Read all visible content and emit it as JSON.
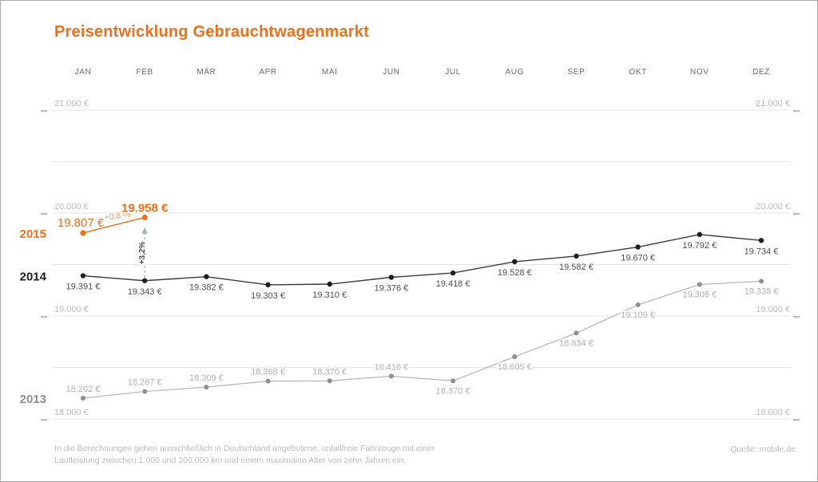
{
  "meta": {
    "title": "Preisentwicklung Gebrauchtwagenmarkt",
    "source": "Quelle: mobile.de",
    "footnote_line1": "In die Berechnungen gehen ausschließlich in Deutschland angebotene, unfallfreie Fahrzeuge mit einer",
    "footnote_line2": "Laufleistung zwischen 1.000 und 200.000 km und einem maximalen Alter von zehn Jahren ein."
  },
  "colors": {
    "accent": "#ee6f1e",
    "accent_light": "#f39b60",
    "dark_line": "#3b3b3b",
    "dark_point": "#1f1f1f",
    "dark_value": "#4f4f4f",
    "gray_line": "#b4b4b4",
    "gray_point": "#8e8e8e",
    "gray_value": "#b2b2b2",
    "gray_year": "#8f8f8f",
    "grid": "#e5e5e5",
    "axis_label": "#bdbdbd",
    "month_label": "#6a6a6a",
    "tick": "#9c9c9c",
    "arrow": "#aab0b6",
    "arrow_text": "#4f4f4f"
  },
  "chart_data": {
    "type": "line",
    "title": "Preisentwicklung Gebrauchtwagenmarkt",
    "unit": "€",
    "categories": [
      "JAN",
      "FEB",
      "MÄR",
      "APR",
      "MAI",
      "JUN",
      "JUL",
      "AUG",
      "SEP",
      "OKT",
      "NOV",
      "DEZ"
    ],
    "ylim": [
      18000,
      21000
    ],
    "gridlines_every": 500,
    "grid": true,
    "legend_position": "left-year-labels",
    "y_ticks": [
      {
        "value": 21000,
        "label": "21.000 €"
      },
      {
        "value": 20000,
        "label": "20.000 €"
      },
      {
        "value": 19000,
        "label": "19.000 €"
      },
      {
        "value": 18000,
        "label": "18.000 €"
      }
    ],
    "series": [
      {
        "name": "2015",
        "style": "accent",
        "values": [
          19807,
          19958
        ],
        "labels": [
          "19.807 €",
          "19.958 €"
        ],
        "label_pos": [
          "above",
          "above"
        ]
      },
      {
        "name": "2014",
        "style": "dark",
        "values": [
          19391,
          19343,
          19382,
          19303,
          19310,
          19376,
          19418,
          19528,
          19582,
          19670,
          19792,
          19734
        ],
        "labels": [
          "19.391 €",
          "19.343 €",
          "19.382 €",
          "19.303 €",
          "19.310 €",
          "19.376 €",
          "19.418 €",
          "19.528 €",
          "19.582 €",
          "19.670 €",
          "19.792 €",
          "19.734 €"
        ],
        "label_pos": [
          "below",
          "below",
          "below",
          "below",
          "below",
          "below",
          "below",
          "below",
          "below",
          "below",
          "below",
          "below"
        ]
      },
      {
        "name": "2013",
        "style": "gray",
        "values": [
          18202,
          18267,
          18309,
          18368,
          18370,
          18416,
          18370,
          18605,
          18834,
          19109,
          19306,
          19338
        ],
        "labels": [
          "18.202 €",
          "18.267 €",
          "18.309 €",
          "18.368 €",
          "18.370 €",
          "18.416 €",
          "18.370 €",
          "18.605 €",
          "18.834 €",
          "19.109 €",
          "19.306 €",
          "19.338 €"
        ],
        "label_pos": [
          "above",
          "above",
          "above",
          "above",
          "above",
          "above",
          "below",
          "below",
          "below",
          "below",
          "below",
          "below"
        ]
      }
    ],
    "annotations": {
      "month_over_month": "+0,8 %",
      "year_over_year": "+3,2%"
    }
  }
}
